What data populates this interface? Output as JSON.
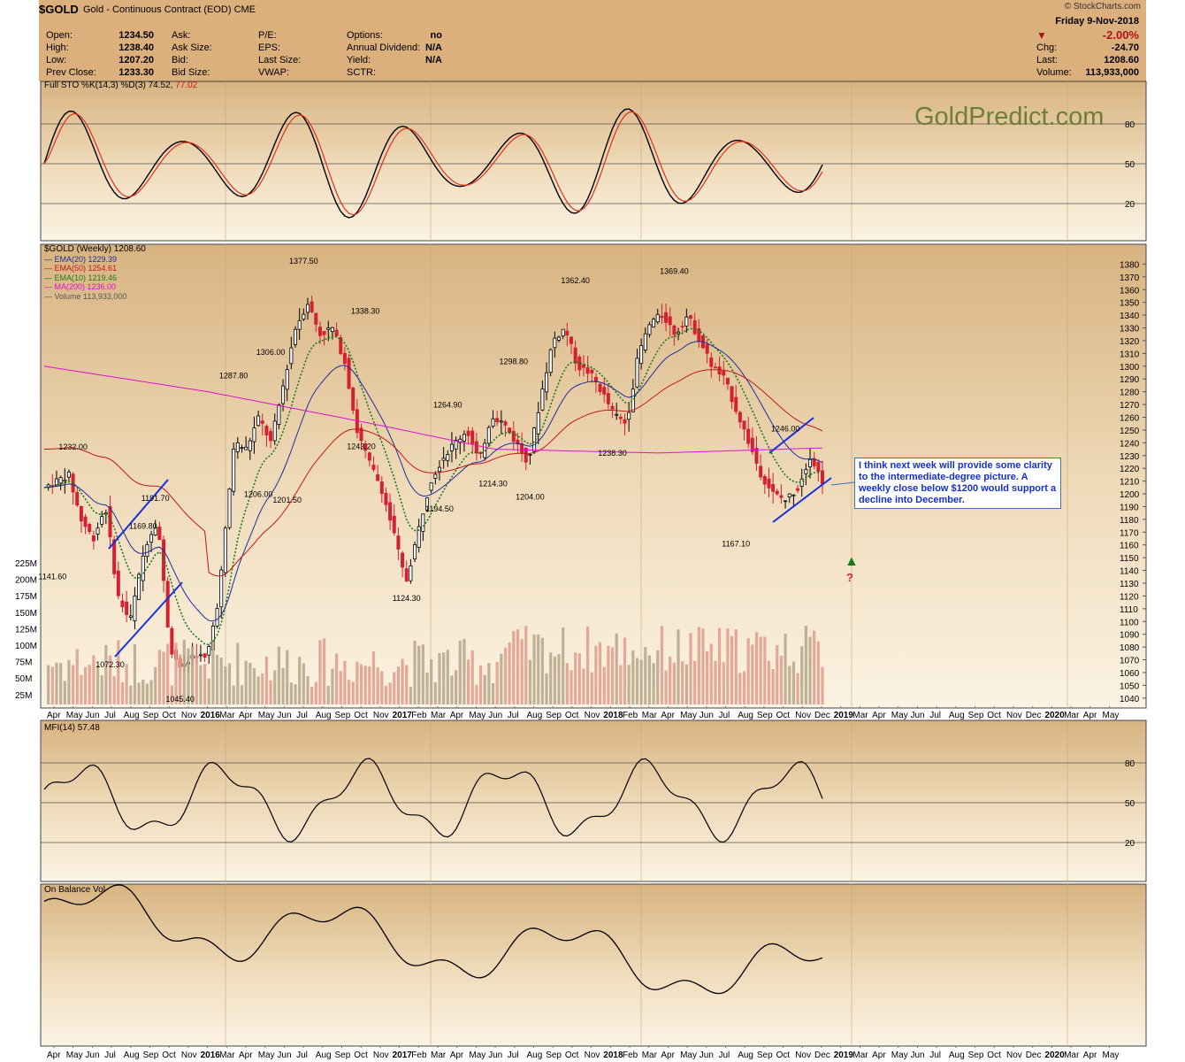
{
  "header": {
    "symbol": "$GOLD",
    "description": "Gold - Continuous Contract (EOD)",
    "exchange": "CME",
    "credit": "© StockCharts.com",
    "date": "Friday  9-Nov-2018",
    "change_pct": "-2.00%",
    "quote_left": [
      {
        "label": "Open:",
        "value": "1234.50"
      },
      {
        "label": "High:",
        "value": "1238.40"
      },
      {
        "label": "Low:",
        "value": "1207.20"
      },
      {
        "label": "Prev Close:",
        "value": "1233.30"
      }
    ],
    "quote_mid": [
      "Ask:",
      "Ask Size:",
      "Bid:",
      "Bid Size:"
    ],
    "quote_mid2": [
      "P/E:",
      "EPS:",
      "Last Size:",
      "VWAP:"
    ],
    "quote_right": [
      {
        "label": "Options:",
        "value": "no"
      },
      {
        "label": "Annual Dividend:",
        "value": "N/A"
      },
      {
        "label": "Yield:",
        "value": "N/A"
      },
      {
        "label": "SCTR:",
        "value": ""
      }
    ],
    "quote_far": [
      {
        "label": "Chg:",
        "value": "-24.70"
      },
      {
        "label": "Last:",
        "value": "1208.60"
      },
      {
        "label": "Volume:",
        "value": "113,933,000"
      }
    ]
  },
  "watermark": "GoldPredict.com",
  "annotation_text": "I think next week will provide some clarity to the intermediate-degree picture. A weekly close below $1200 would support a decline into December.",
  "question_mark": "?",
  "sto": {
    "label": "Full STO %K(14,3) %D(3) 74.52,",
    "label_red": "77.02",
    "levels": [
      "80",
      "50",
      "20"
    ]
  },
  "price_legend": [
    {
      "text": "$GOLD (Weekly) 1208.60",
      "color": "#000000"
    },
    {
      "text": "EMA(20) 1229.39",
      "color": "#1f2d9a"
    },
    {
      "text": "EMA(50) 1254.61",
      "color": "#c01818"
    },
    {
      "text": "EMA(10) 1219.46",
      "color": "#1a7a1a"
    },
    {
      "text": "MA(200) 1236.00",
      "color": "#e010d0"
    },
    {
      "text": "Volume 113,933,000",
      "color": "#555555"
    }
  ],
  "mfi": {
    "label": "MFI(14) 57.48",
    "levels": [
      "80",
      "50",
      "20"
    ]
  },
  "obv": {
    "label": "On Balance Vol"
  },
  "x_labels": [
    "Apr",
    "May",
    "Jun",
    "Jul",
    "Aug",
    "Sep",
    "Oct",
    "Nov",
    "2016",
    "Mar",
    "Apr",
    "May",
    "Jun",
    "Jul",
    "Aug",
    "Sep",
    "Oct",
    "Nov",
    "2017",
    "Feb",
    "Mar",
    "Apr",
    "May",
    "Jun",
    "Jul",
    "Aug",
    "Sep",
    "Oct",
    "Nov",
    "2018",
    "Feb",
    "Mar",
    "Apr",
    "May",
    "Jun",
    "Jul",
    "Aug",
    "Sep",
    "Oct",
    "Nov",
    "Dec",
    "2019",
    "Mar",
    "Apr",
    "May",
    "Jun",
    "Jul",
    "Aug",
    "Sep",
    "Oct",
    "Nov",
    "Dec",
    "2020",
    "Mar",
    "Apr",
    "May"
  ],
  "price_ticks": [
    "1380",
    "1370",
    "1360",
    "1350",
    "1340",
    "1330",
    "1320",
    "1310",
    "1300",
    "1290",
    "1280",
    "1270",
    "1260",
    "1250",
    "1240",
    "1230",
    "1220",
    "1210",
    "1200",
    "1190",
    "1180",
    "1170",
    "1160",
    "1150",
    "1140",
    "1130",
    "1120",
    "1110",
    "1100",
    "1090",
    "1080",
    "1070",
    "1060",
    "1050",
    "1040"
  ],
  "volume_ticks": [
    "225M",
    "200M",
    "175M",
    "150M",
    "125M",
    "100M",
    "75M",
    "50M",
    "25M"
  ],
  "colors": {
    "up": "#000000",
    "down": "#d42030",
    "ema20": "#1f2d9a",
    "ema50": "#c01818",
    "ema10": "#1a7a1a",
    "ma200": "#e010d0",
    "trend": "#1530e0"
  },
  "chart_data": {
    "type": "candlestick",
    "title": "$GOLD (Weekly)",
    "y_range": [
      1035,
      1390
    ],
    "peak_labels": [
      {
        "label": "1232.00",
        "value": 1232.0
      },
      {
        "label": "1141.60",
        "value": 1141.6
      },
      {
        "label": "1191.70",
        "value": 1191.7
      },
      {
        "label": "1169.80",
        "value": 1169.8
      },
      {
        "label": "1072.30",
        "value": 1072.3
      },
      {
        "label": "1045.40",
        "value": 1045.4
      },
      {
        "label": "1287.80",
        "value": 1287.8
      },
      {
        "label": "1306.00",
        "value": 1306.0
      },
      {
        "label": "1206.00",
        "value": 1206.0
      },
      {
        "label": "1377.50",
        "value": 1377.5
      },
      {
        "label": "1338.30",
        "value": 1338.3
      },
      {
        "label": "1201.50",
        "value": 1201.5
      },
      {
        "label": "1243.20",
        "value": 1243.2
      },
      {
        "label": "1124.30",
        "value": 1124.3
      },
      {
        "label": "1264.90",
        "value": 1264.9
      },
      {
        "label": "1194.50",
        "value": 1194.5
      },
      {
        "label": "1298.80",
        "value": 1298.8
      },
      {
        "label": "1214.30",
        "value": 1214.3
      },
      {
        "label": "1204.00",
        "value": 1204.0
      },
      {
        "label": "1362.40",
        "value": 1362.4
      },
      {
        "label": "1238.30",
        "value": 1238.3
      },
      {
        "label": "1369.40",
        "value": 1369.4
      },
      {
        "label": "1246.00",
        "value": 1246.0
      },
      {
        "label": "1167.10",
        "value": 1167.1
      }
    ],
    "last": 1208.6
  }
}
